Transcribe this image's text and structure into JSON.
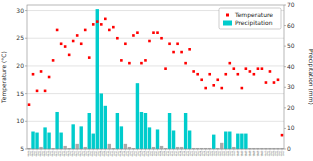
{
  "chart_data": {
    "type": "bar",
    "title": "",
    "ylabel": "Temperature (°C)",
    "y2label": "Precipitation (mm)",
    "ylim": [
      5,
      31
    ],
    "yticks": [
      5,
      10,
      15,
      20,
      25,
      30
    ],
    "y2lim": [
      0,
      70
    ],
    "y2ticks": [
      0,
      10,
      20,
      30,
      40,
      50,
      60,
      70
    ],
    "grid": true,
    "legend": "upper right",
    "categories": [
      "08/01\n2015",
      "08/03\n2015",
      "08/05\n2015",
      "08/07\n2015",
      "08/09\n2015",
      "08/11\n2015",
      "08/13\n2015",
      "08/15\n2015",
      "08/17\n2015",
      "08/19\n2015",
      "08/21\n2015",
      "08/23\n2015",
      "08/25\n2015",
      "08/27\n2015",
      "08/29\n2015",
      "08/31\n2015",
      "09/02\n2015",
      "09/04\n2015",
      "09/06\n2015",
      "09/08\n2015",
      "09/10\n2015",
      "09/12\n2015",
      "09/14\n2015",
      "09/16\n2015",
      "09/18\n2015",
      "09/20\n2015",
      "09/22\n2015",
      "09/24\n2015",
      "09/26\n2015",
      "09/28\n2015",
      "09/30\n2015",
      "10/02\n2015",
      "10/04\n2015",
      "10/06\n2015",
      "10/08\n2015",
      "10/10\n2015",
      "10/12\n2015",
      "10/14\n2015",
      "10/16\n2015",
      "10/18\n2015",
      "10/20\n2015",
      "10/22\n2015",
      "10/24\n2015",
      "10/26\n2015",
      "10/28\n2015",
      "10/30\n2015",
      "11/01\n2015",
      "11/03\n2015",
      "11/05\n2015",
      "11/07\n2015",
      "11/09\n2015",
      "11/11\n2015",
      "11/13\n2015",
      "11/15\n2015",
      "11/17\n2015",
      "11/19\n2015",
      "11/21\n2015",
      "11/23\n2015",
      "11/25\n2015",
      "11/27\n2015",
      "11/29\n2015",
      "12/01\n2015",
      "12/03\n2015",
      "12/05\n2015"
    ],
    "series": [
      {
        "name": "Temperature",
        "type": "scatter",
        "axis": "y",
        "color": "#FF0000",
        "marker": "square",
        "values": [
          13.0,
          18.5,
          15.5,
          19.0,
          15.5,
          18.0,
          21.0,
          26.5,
          24.0,
          23.5,
          22.0,
          24.5,
          25.5,
          24.0,
          26.5,
          21.5,
          27.5,
          28.0,
          27.5,
          28.5,
          26.5,
          27.0,
          25.0,
          21.0,
          24.0,
          20.5,
          25.5,
          26.0,
          20.5,
          21.0,
          24.5,
          26.0,
          26.0,
          25.0,
          19.5,
          24.0,
          22.5,
          24.0,
          22.5,
          20.5,
          23.0,
          19.0,
          18.5,
          17.5,
          16.0,
          18.5,
          16.5,
          17.5,
          16.0,
          18.5,
          20.5,
          19.5,
          18.5,
          16.0,
          19.5,
          19.0,
          18.5,
          19.5,
          19.5,
          17.0,
          19.0,
          17.0,
          17.5,
          7.5
        ]
      },
      {
        "name": "Precipitation",
        "type": "bar",
        "axis": "y2",
        "color": "#00CCCC",
        "colors": [
          "#aaaaaa",
          "#00CCCC",
          "#00CCCC",
          "#aaaaaa",
          "#00CCCC",
          "#00CCCC",
          "#aaaaaa",
          "#00CCCC",
          "#00CCCC",
          "#aaaaaa",
          "#aaaaaa",
          "#00CCCC",
          "#aaaaaa",
          "#00CCCC",
          "#aaaaaa",
          "#00CCCC",
          "#00CCCC",
          "#00CCCC",
          "#00CCCC",
          "#00CCCC",
          "#aaaaaa",
          "#aaaaaa",
          "#00CCCC",
          "#00CCCC",
          "#aaaaaa",
          "#aaaaaa",
          "#aaaaaa",
          "#00CCCC",
          "#00CCCC",
          "#00CCCC",
          "#00CCCC",
          "#aaaaaa",
          "#00CCCC",
          "#aaaaaa",
          "#aaaaaa",
          "#00CCCC",
          "#00CCCC",
          "#aaaaaa",
          "#aaaaaa",
          "#00CCCC",
          "#00CCCC",
          "#aaaaaa",
          "#aaaaaa",
          "#aaaaaa",
          "#aaaaaa",
          "#aaaaaa",
          "#00CCCC",
          "#aaaaaa",
          "#aaaaaa",
          "#00CCCC",
          "#00CCCC",
          "#aaaaaa",
          "#00CCCC",
          "#00CCCC",
          "#00CCCC",
          "#aaaaaa",
          "#aaaaaa",
          "#aaaaaa",
          "#aaaaaa",
          "#aaaaaa",
          "#aaaaaa",
          "#aaaaaa",
          "#aaaaaa",
          "#aaaaaa"
        ],
        "values": [
          0.5,
          8.5,
          8.0,
          1.0,
          10.5,
          8.0,
          0.5,
          18.0,
          8.0,
          1.5,
          0.5,
          12.0,
          2.5,
          11.0,
          1.0,
          17.5,
          7.5,
          68.0,
          27.0,
          21.0,
          2.5,
          0.5,
          17.5,
          11.0,
          2.5,
          1.0,
          0.5,
          32.0,
          18.0,
          17.5,
          10.5,
          1.0,
          9.5,
          1.5,
          0.5,
          17.5,
          9.0,
          1.0,
          1.0,
          17.5,
          9.0,
          0.5,
          0.5,
          0.5,
          0.5,
          0.5,
          7.0,
          0.5,
          3.0,
          8.5,
          8.5,
          1.0,
          7.5,
          7.5,
          7.5,
          0.5,
          0.5,
          0.5,
          0.5,
          0.5,
          0.5,
          0.5,
          0.5,
          0.5
        ]
      }
    ]
  }
}
